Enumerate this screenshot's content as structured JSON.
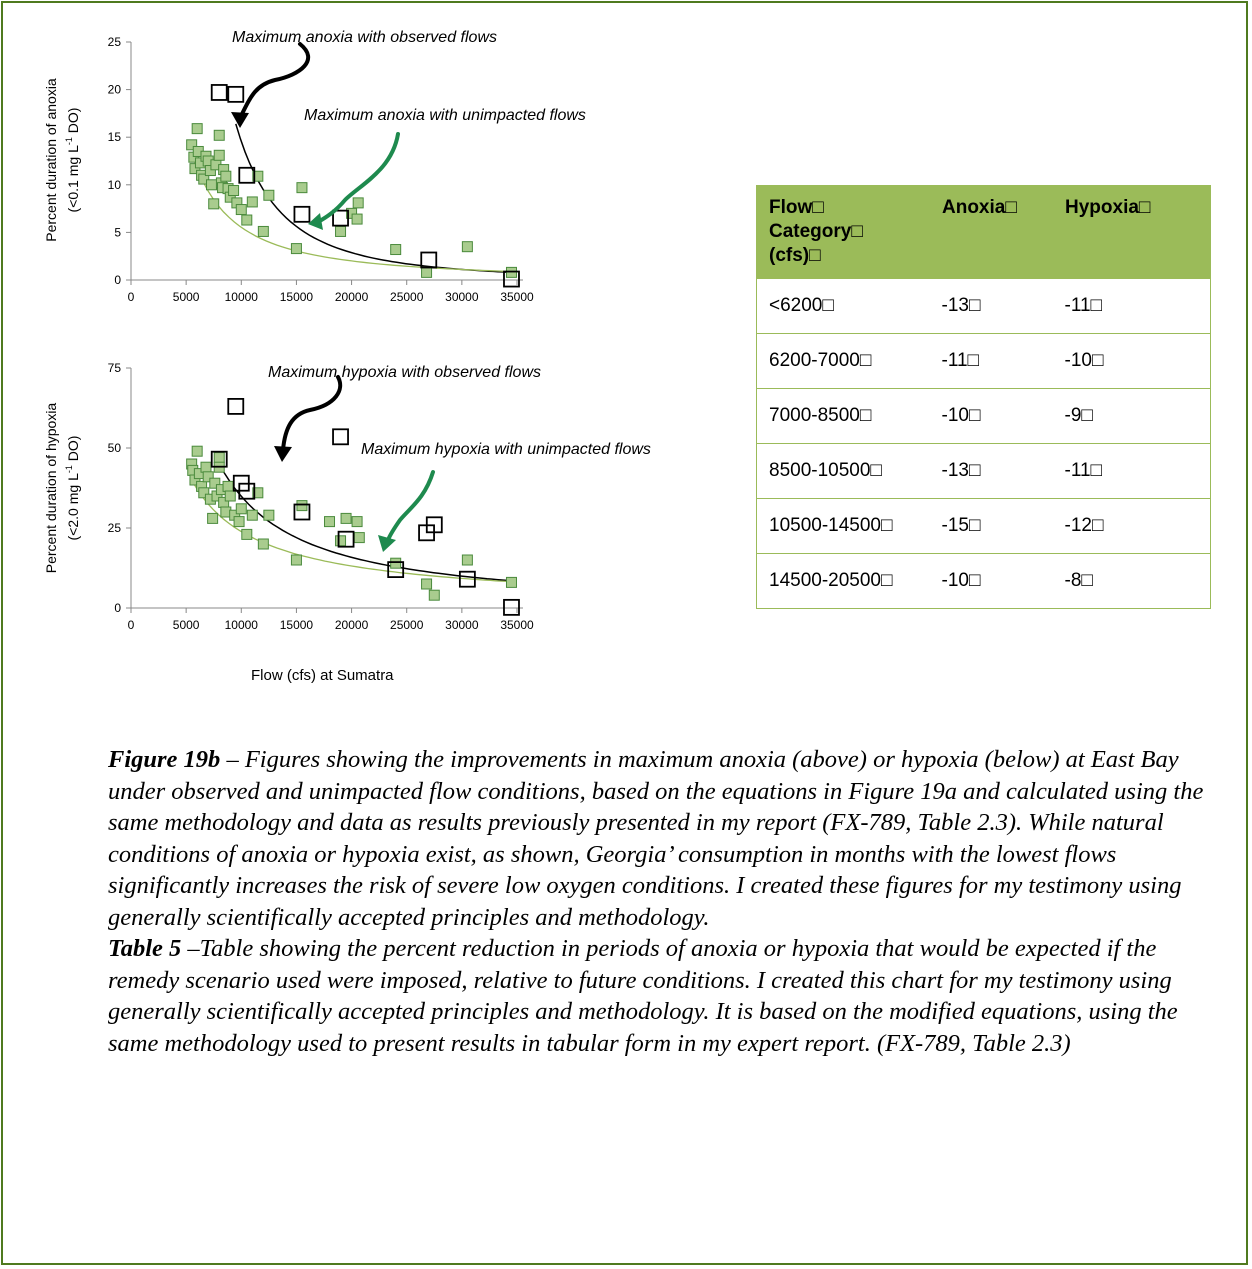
{
  "chart_data": [
    {
      "type": "scatter",
      "xlim": [
        0,
        35000
      ],
      "ylim": [
        0,
        25
      ],
      "xticks": [
        0,
        5000,
        10000,
        15000,
        20000,
        25000,
        30000,
        35000
      ],
      "yticks": [
        0,
        5,
        10,
        15,
        20,
        25
      ],
      "ylabel_line1": "Percent duration of anoxia",
      "ylabel_line2": "(<0.1 mg L",
      "ylabel_sup": "-1",
      "ylabel_line2_end": " DO)",
      "xlabel": "",
      "grid": false,
      "series": [
        {
          "marker": "open-square",
          "points": [
            [
              8000,
              19.7
            ],
            [
              9500,
              19.5
            ],
            [
              10500,
              11
            ],
            [
              15500,
              6.9
            ],
            [
              19000,
              6.5
            ],
            [
              27000,
              2.1
            ],
            [
              34500,
              0.1
            ]
          ]
        },
        {
          "marker": "green-square",
          "points": [
            [
              5500,
              14.2
            ],
            [
              5700,
              12.9
            ],
            [
              5800,
              11.7
            ],
            [
              6000,
              15.9
            ],
            [
              6100,
              13.5
            ],
            [
              6300,
              12.3
            ],
            [
              6400,
              11.0
            ],
            [
              6600,
              10.6
            ],
            [
              6800,
              13.0
            ],
            [
              7000,
              12.5
            ],
            [
              7200,
              11.5
            ],
            [
              7300,
              10.0
            ],
            [
              7500,
              8.0
            ],
            [
              7700,
              12.1
            ],
            [
              8000,
              15.2
            ],
            [
              8000,
              13.1
            ],
            [
              8200,
              10.2
            ],
            [
              8300,
              9.7
            ],
            [
              8400,
              11.6
            ],
            [
              8600,
              10.9
            ],
            [
              8800,
              9.6
            ],
            [
              9000,
              8.7
            ],
            [
              9300,
              9.4
            ],
            [
              9600,
              8.1
            ],
            [
              10000,
              7.4
            ],
            [
              10500,
              6.3
            ],
            [
              11000,
              8.2
            ],
            [
              11500,
              10.9
            ],
            [
              12000,
              5.1
            ],
            [
              12500,
              8.9
            ],
            [
              15000,
              3.3
            ],
            [
              15500,
              9.7
            ],
            [
              19000,
              5.1
            ],
            [
              20000,
              7.0
            ],
            [
              20500,
              6.4
            ],
            [
              20600,
              8.1
            ],
            [
              24000,
              3.2
            ],
            [
              26800,
              0.8
            ],
            [
              30500,
              3.5
            ],
            [
              34500,
              0.8
            ]
          ]
        }
      ],
      "curves": [
        {
          "name": "Maximum anoxia with observed flows",
          "color": "#000000",
          "x_start": 9500,
          "x_end": 34500,
          "y_start": 16.4,
          "y_end": 0.8
        },
        {
          "name": "Maximum anoxia with unimpacted flows",
          "color": "#9bbb59",
          "x_start": 5500,
          "x_end": 34500,
          "y_start": 13.3,
          "y_end": 0.9
        }
      ],
      "annotations": {
        "observed": "Maximum anoxia with observed flows",
        "unimpacted": "Maximum anoxia with unimpacted flows"
      }
    },
    {
      "type": "scatter",
      "xlim": [
        0,
        35000
      ],
      "ylim": [
        0,
        75
      ],
      "xticks": [
        0,
        5000,
        10000,
        15000,
        20000,
        25000,
        30000,
        35000
      ],
      "yticks": [
        0,
        25,
        50,
        75
      ],
      "ylabel_line1": "Percent duration of hypoxia",
      "ylabel_line2": "(<2.0 mg L",
      "ylabel_sup": "-1",
      "ylabel_line2_end": " DO)",
      "xlabel": "Flow (cfs) at Sumatra",
      "grid": false,
      "series": [
        {
          "marker": "open-square",
          "points": [
            [
              8000,
              46.5
            ],
            [
              9500,
              63
            ],
            [
              10000,
              39
            ],
            [
              10500,
              36.5
            ],
            [
              15500,
              30
            ],
            [
              19000,
              53.5
            ],
            [
              19500,
              21.5
            ],
            [
              24000,
              12
            ],
            [
              26800,
              23.5
            ],
            [
              27500,
              26
            ],
            [
              30500,
              9
            ],
            [
              34500,
              0.2
            ]
          ]
        },
        {
          "marker": "green-square",
          "points": [
            [
              5500,
              45
            ],
            [
              5600,
              43
            ],
            [
              5800,
              40
            ],
            [
              6000,
              49
            ],
            [
              6200,
              42
            ],
            [
              6400,
              38
            ],
            [
              6600,
              36
            ],
            [
              6800,
              44
            ],
            [
              7000,
              41
            ],
            [
              7200,
              34
            ],
            [
              7400,
              28
            ],
            [
              7600,
              39
            ],
            [
              7800,
              35
            ],
            [
              8000,
              47
            ],
            [
              8000,
              44
            ],
            [
              8200,
              37
            ],
            [
              8400,
              33
            ],
            [
              8600,
              30
            ],
            [
              8800,
              38
            ],
            [
              9000,
              35
            ],
            [
              9400,
              29
            ],
            [
              9800,
              27
            ],
            [
              10000,
              31
            ],
            [
              10500,
              23
            ],
            [
              11000,
              29
            ],
            [
              11500,
              36
            ],
            [
              12000,
              20
            ],
            [
              12500,
              29
            ],
            [
              15000,
              15
            ],
            [
              15500,
              32
            ],
            [
              18000,
              27
            ],
            [
              19000,
              21
            ],
            [
              19500,
              28
            ],
            [
              20500,
              27
            ],
            [
              20700,
              22
            ],
            [
              24000,
              14
            ],
            [
              26800,
              7.5
            ],
            [
              27500,
              4
            ],
            [
              30500,
              15
            ],
            [
              34500,
              8
            ]
          ]
        }
      ],
      "curves": [
        {
          "name": "Maximum hypoxia with observed flows",
          "color": "#000000",
          "x_start": 8000,
          "x_end": 34500,
          "y_start": 45,
          "y_end": 8.5
        },
        {
          "name": "Maximum hypoxia with unimpacted flows",
          "color": "#9bbb59",
          "x_start": 5500,
          "x_end": 34500,
          "y_start": 40,
          "y_end": 8.2
        }
      ],
      "annotations": {
        "observed": "Maximum hypoxia with observed flows",
        "unimpacted": "Maximum hypoxia with unimpacted flows"
      }
    }
  ],
  "table": {
    "headers": [
      "Flow□ Category□ (cfs)□",
      "Anoxia□",
      "Hypoxia□"
    ],
    "header_lines": [
      "Flow□",
      "Category□",
      "(cfs)□"
    ],
    "rows": [
      [
        "<6200□",
        "-13□",
        "-11□"
      ],
      [
        "6200-7000□",
        "-11□",
        "-10□"
      ],
      [
        "7000-8500□",
        "-10□",
        "-9□"
      ],
      [
        "8500-10500□",
        "-13□",
        "-11□"
      ],
      [
        "10500-14500□",
        "-15□",
        "-12□"
      ],
      [
        "14500-20500□",
        "-10□",
        "-8□"
      ]
    ],
    "header_color": "#9bbb59"
  },
  "caption": {
    "fig_label": "Figure 19b",
    "fig_text": " – Figures showing the improvements in maximum anoxia (above) or hypoxia (below) at East Bay under observed and unimpacted flow conditions, based on the equations in Figure 19a and calculated using the same methodology and data as results previously presented in my report (FX-789, Table 2.3).  While natural conditions of anoxia or hypoxia exist, as shown, Georgia’ consumption in months with the lowest flows significantly increases the risk of severe low oxygen conditions.  I created these figures for my testimony using generally scientifically accepted principles and methodology.",
    "table_label": "Table 5",
    "table_text": " –Table showing the percent reduction in periods of anoxia or hypoxia that would be expected if the remedy scenario used were imposed, relative to future conditions.  I created this chart  for my testimony using generally scientifically accepted principles and methodology.  It is based on the modified equations, using the same methodology used to present results in tabular form in my expert report. (FX-789, Table 2.3)"
  },
  "colors": {
    "green_fill": "#a9cc8e",
    "green_stroke": "#4a8a3c",
    "green_arrow": "#1e8a4e",
    "trend_green": "#9bbb59",
    "frame": "#4f7a1f"
  }
}
